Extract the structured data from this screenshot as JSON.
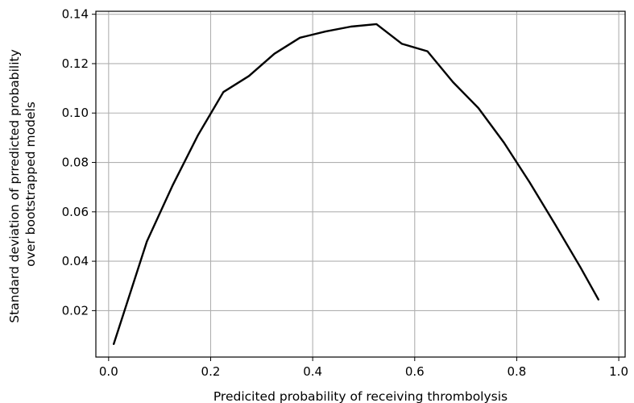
{
  "chart_data": {
    "type": "line",
    "title": "",
    "xlabel": "Predicited probability of receiving thrombolysis",
    "ylabel_lines": [
      "Standard deviation of prredicted probability",
      "over bootstrapped models"
    ],
    "xlim": [
      -0.025,
      1.0125
    ],
    "ylim": [
      0.0012,
      0.1412
    ],
    "x_ticks": [
      0.0,
      0.2,
      0.4,
      0.6,
      0.8,
      1.0
    ],
    "x_tick_labels": [
      "0.0",
      "0.2",
      "0.4",
      "0.6",
      "0.8",
      "1.0"
    ],
    "y_ticks": [
      0.02,
      0.04,
      0.06,
      0.08,
      0.1,
      0.12,
      0.14
    ],
    "y_tick_labels": [
      "0.02",
      "0.04",
      "0.06",
      "0.08",
      "0.10",
      "0.12",
      "0.14"
    ],
    "grid": true,
    "line_color": "#000000",
    "series": [
      {
        "x": [
          0.01,
          0.075,
          0.125,
          0.175,
          0.225,
          0.275,
          0.325,
          0.375,
          0.425,
          0.475,
          0.525,
          0.575,
          0.625,
          0.675,
          0.725,
          0.775,
          0.825,
          0.875,
          0.925,
          0.96
        ],
        "values": [
          0.0065,
          0.048,
          0.0705,
          0.091,
          0.1085,
          0.115,
          0.124,
          0.1305,
          0.133,
          0.135,
          0.136,
          0.128,
          0.125,
          0.1125,
          0.102,
          0.088,
          0.072,
          0.055,
          0.0375,
          0.0245
        ]
      }
    ]
  }
}
